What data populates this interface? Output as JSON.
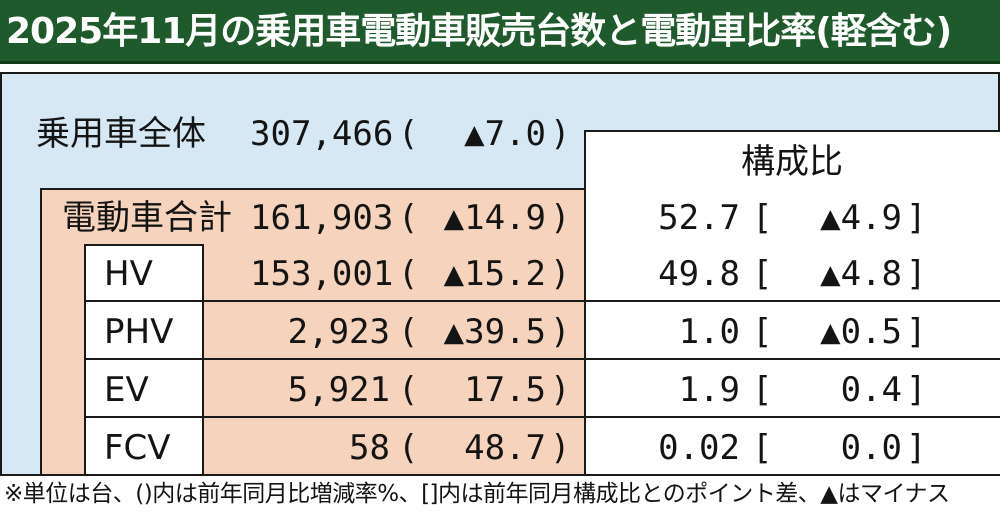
{
  "title": "2025年11月の乗用車電動車販売台数と電動車比率(軽含む)",
  "chart_data": {
    "type": "table",
    "header_ratio": "構成比",
    "total": {
      "label": "乗用車全体",
      "units": "307,466",
      "change": "▲7.0"
    },
    "rows": [
      {
        "label": "電動車合計",
        "units": "161,903",
        "change": "▲14.9",
        "ratio": "52.7",
        "ratio_change": "▲4.9"
      },
      {
        "label": "HV",
        "units": "153,001",
        "change": "▲15.2",
        "ratio": "49.8",
        "ratio_change": "▲4.8"
      },
      {
        "label": "PHV",
        "units": "2,923",
        "change": "▲39.5",
        "ratio": "1.0",
        "ratio_change": "▲0.5"
      },
      {
        "label": "EV",
        "units": "5,921",
        "change": "17.5",
        "ratio": "1.9",
        "ratio_change": "0.4"
      },
      {
        "label": "FCV",
        "units": "58",
        "change": "48.7",
        "ratio": "0.02",
        "ratio_change": "0.0"
      }
    ]
  },
  "brackets": {
    "paren_open": "(",
    "paren_close": ")",
    "sq_open": "[",
    "sq_close": "]"
  },
  "footnote": "※単位は台、()内は前年同月比増減率%、[]内は前年同月構成比とのポイント差、▲はマイナス",
  "colors": {
    "title_bg": "#1f5a2d",
    "panel_bg": "#d6e8f4",
    "highlight_bg": "#f6d3bd"
  }
}
